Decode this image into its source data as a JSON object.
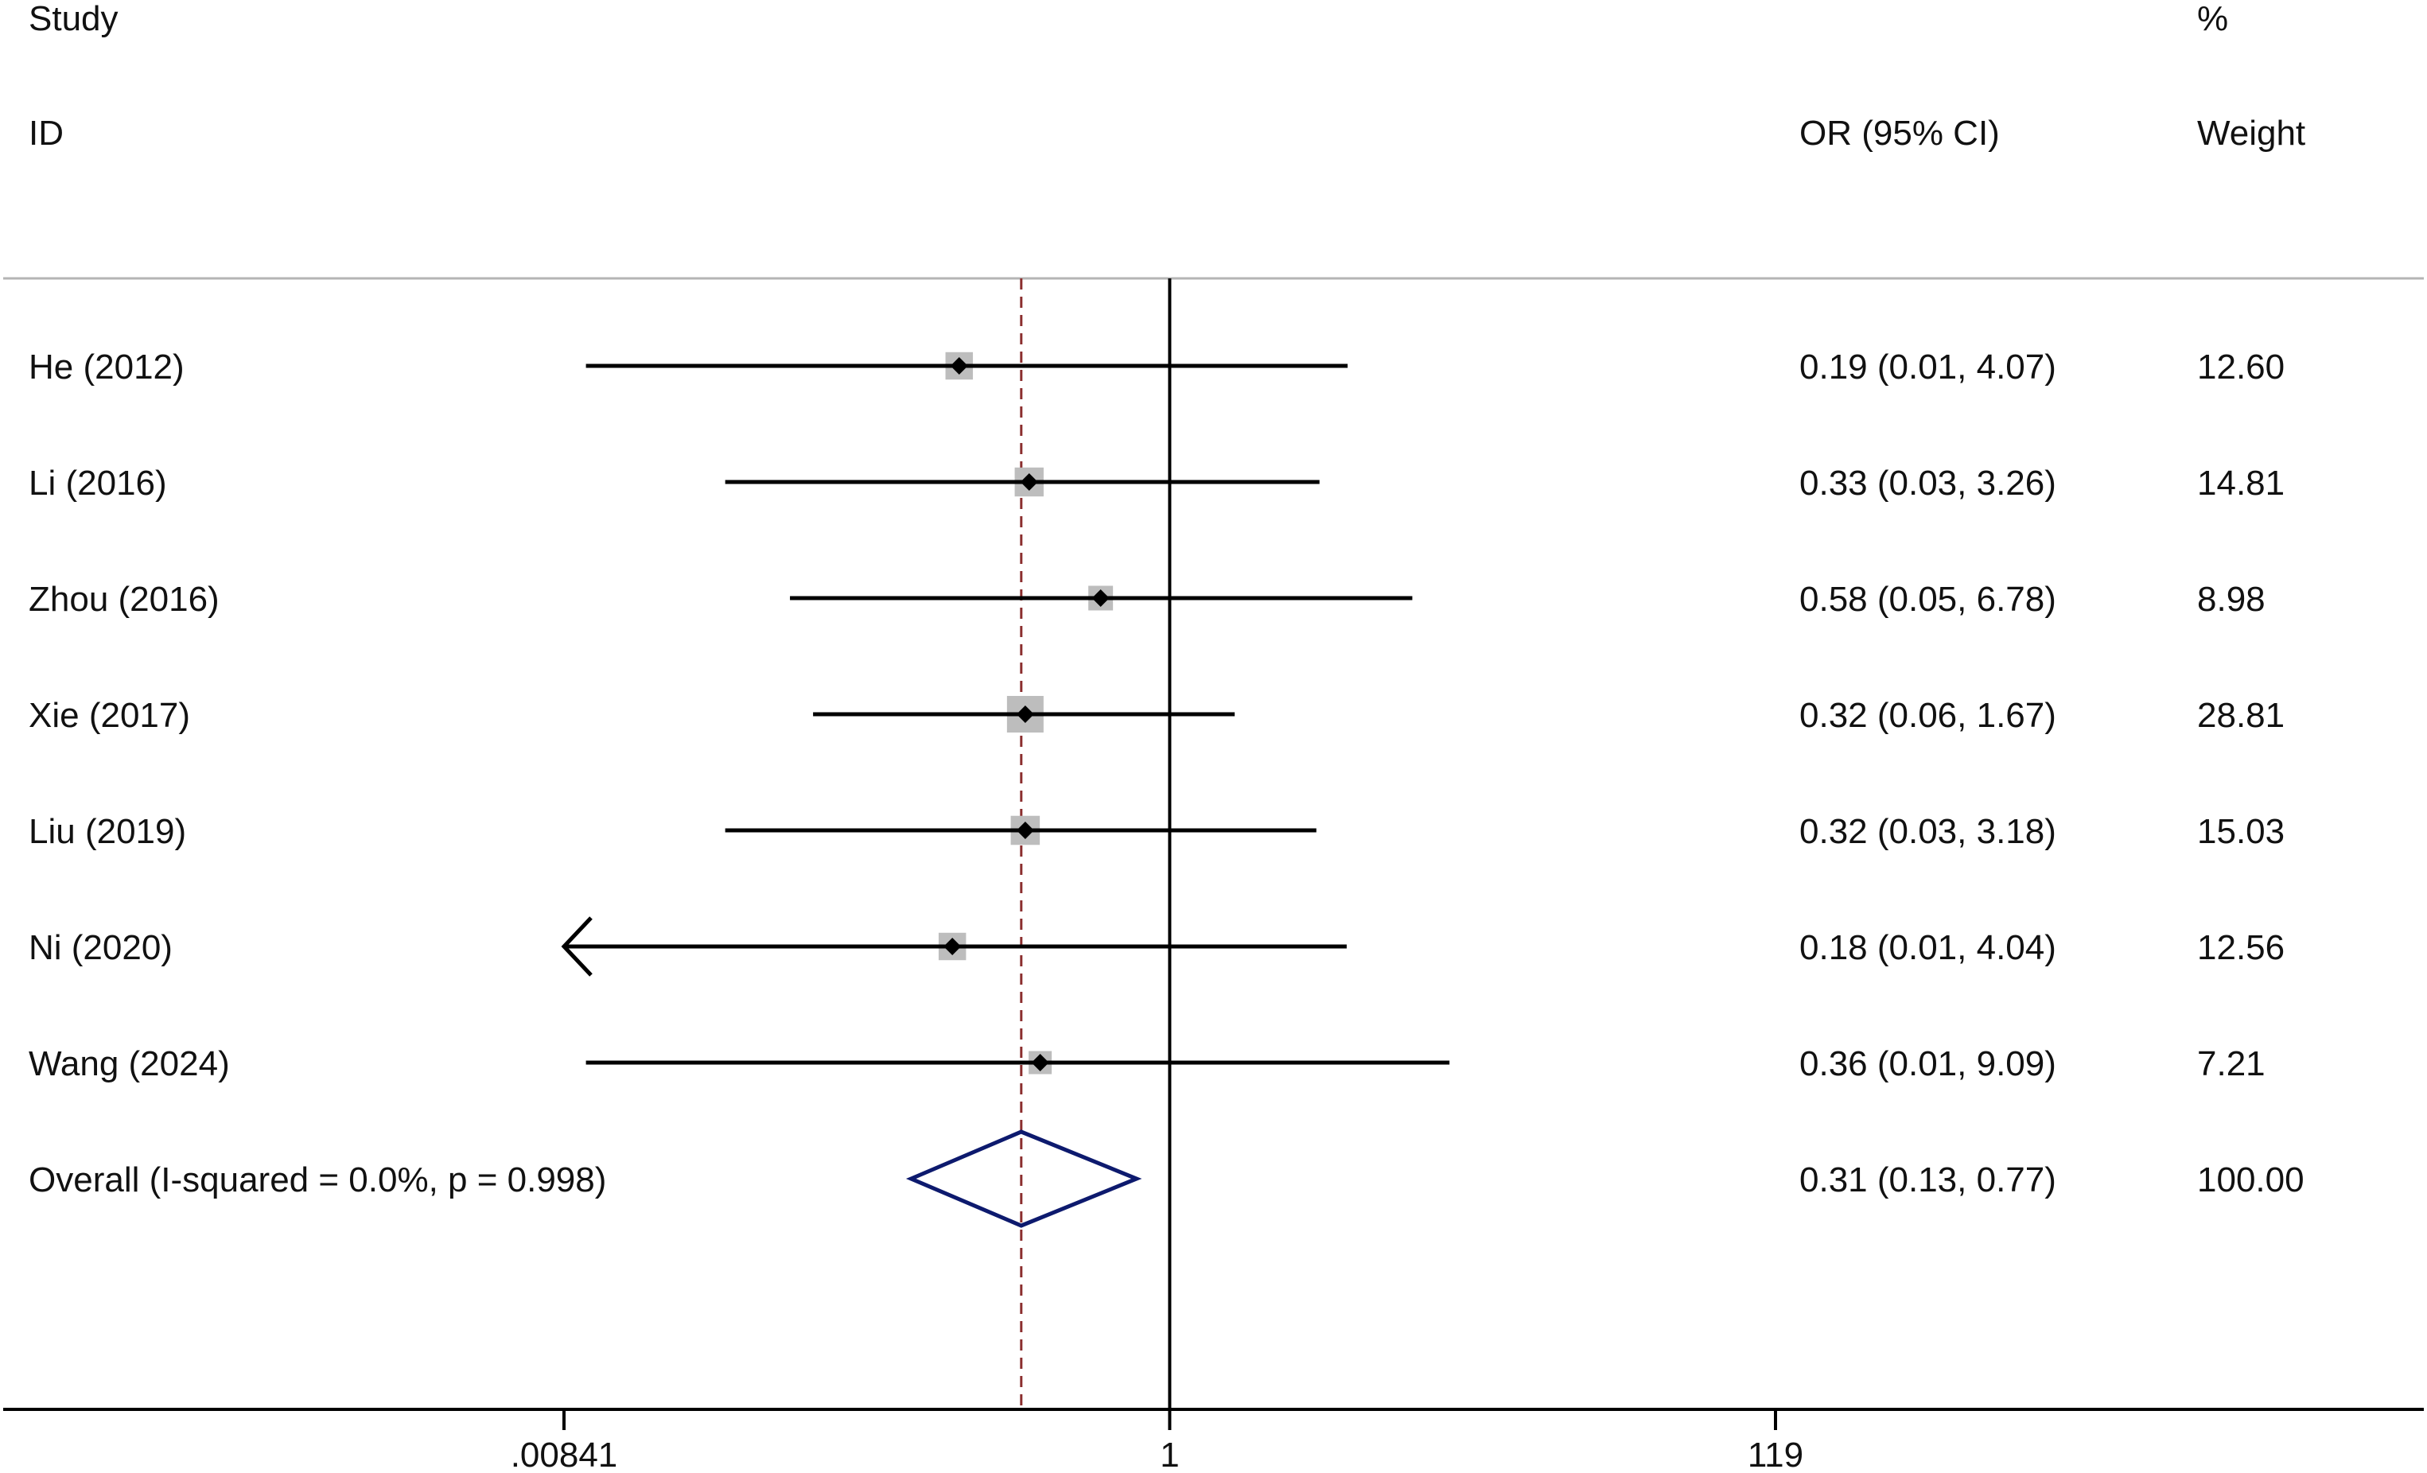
{
  "header": {
    "study": "Study",
    "id": "ID",
    "or_ci": "OR (95% CI)",
    "percent": "%",
    "weight": "Weight"
  },
  "chart_data": {
    "type": "forest",
    "scale": "log",
    "xlim": [
      0.00841,
      119
    ],
    "xticks": [
      {
        "value": 0.00841,
        "label": ".00841"
      },
      {
        "value": 1,
        "label": "1"
      },
      {
        "value": 119,
        "label": "119"
      }
    ],
    "null_line": 1,
    "pooled_line": 0.31,
    "studies": [
      {
        "label": "He (2012)",
        "or": 0.19,
        "lo": 0.01,
        "hi": 4.07,
        "ci_text": "0.19 (0.01, 4.07)",
        "weight": 12.6,
        "weight_text": "12.60"
      },
      {
        "label": "Li (2016)",
        "or": 0.33,
        "lo": 0.03,
        "hi": 3.26,
        "ci_text": "0.33 (0.03, 3.26)",
        "weight": 14.81,
        "weight_text": "14.81"
      },
      {
        "label": "Zhou (2016)",
        "or": 0.58,
        "lo": 0.05,
        "hi": 6.78,
        "ci_text": "0.58 (0.05, 6.78)",
        "weight": 8.98,
        "weight_text": "8.98"
      },
      {
        "label": "Xie (2017)",
        "or": 0.32,
        "lo": 0.06,
        "hi": 1.67,
        "ci_text": "0.32 (0.06, 1.67)",
        "weight": 28.81,
        "weight_text": "28.81"
      },
      {
        "label": "Liu (2019)",
        "or": 0.32,
        "lo": 0.03,
        "hi": 3.18,
        "ci_text": "0.32 (0.03, 3.18)",
        "weight": 15.03,
        "weight_text": "15.03"
      },
      {
        "label": "Ni (2020)",
        "or": 0.18,
        "lo": 0.01,
        "hi": 4.04,
        "ci_text": "0.18 (0.01, 4.04)",
        "weight": 12.56,
        "weight_text": "12.56",
        "arrow_left": true
      },
      {
        "label": "Wang (2024)",
        "or": 0.36,
        "lo": 0.01,
        "hi": 9.09,
        "ci_text": "0.36 (0.01, 9.09)",
        "weight": 7.21,
        "weight_text": "7.21"
      }
    ],
    "overall": {
      "label": "Overall  (I-squared = 0.0%, p = 0.998)",
      "or": 0.31,
      "lo": 0.13,
      "hi": 0.77,
      "ci_text": "0.31 (0.13, 0.77)",
      "weight_text": "100.00"
    },
    "colors": {
      "line": "#000000",
      "box": "#bdbdbd",
      "point": "#000000",
      "diamond": "#0d1a6e",
      "pooled_line": "#8b2e2e",
      "rule": "#b5b5b5"
    }
  }
}
